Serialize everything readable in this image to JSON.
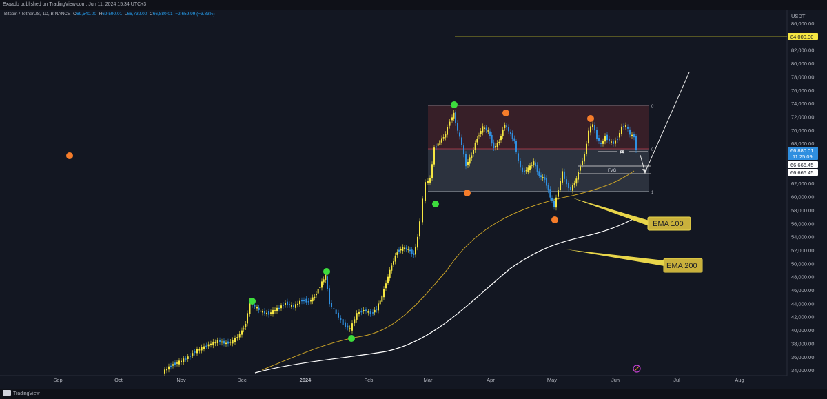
{
  "header": {
    "publish_text": "Exaado published on TradingView.com, Jun 11, 2024 15:34 UTC+3"
  },
  "symbol": {
    "name": "Bitcoin / TetherUS, 1D, BINANCE",
    "open_label": "O",
    "open": "69,540.00",
    "high_label": "H",
    "high": "69,590.01",
    "low_label": "L",
    "low": "66,732.00",
    "close_label": "C",
    "close": "66,880.01",
    "change": "−2,659.99 (−3.83%)"
  },
  "price_axis": {
    "currency": "USDT",
    "labels": [
      "86,000.00",
      "84,000.00",
      "82,000.00",
      "80,000.00",
      "78,000.00",
      "76,000.00",
      "74,000.00",
      "72,000.00",
      "70,000.00",
      "68,000.00",
      "66,000.00",
      "64,000.00",
      "62,000.00",
      "60,000.00",
      "58,000.00",
      "56,000.00",
      "54,000.00",
      "52,000.00",
      "50,000.00",
      "48,000.00",
      "46,000.00",
      "44,000.00",
      "42,000.00",
      "40,000.00",
      "38,000.00",
      "36,000.00",
      "34,000.00"
    ],
    "tag_target": "84,000.00",
    "tag_last_price": "66,880.01",
    "tag_countdown": "11:25:09",
    "tag_level_1": "66,666.45",
    "tag_level_2": "66,666.45"
  },
  "time_axis": {
    "labels": [
      "Sep",
      "Oct",
      "Nov",
      "Dec",
      "2024",
      "Feb",
      "Mar",
      "Apr",
      "May",
      "Jun",
      "Jul",
      "Aug"
    ]
  },
  "annotations": {
    "fib_top": "0",
    "fib_mid": "0",
    "fib_bottom": "1",
    "liquidity": "$$",
    "fvg": "FVG",
    "ema100": "EMA 100",
    "ema200": "EMA 200"
  },
  "footer": {
    "brand": "TradingView"
  },
  "colors": {
    "background": "#131722",
    "up": "#f5e642",
    "down": "#2f8fe0",
    "ema100": "#c9a227",
    "ema200": "#ffffff",
    "swing_high": "#f57c2a",
    "swing_low": "#3ddc3d"
  }
}
